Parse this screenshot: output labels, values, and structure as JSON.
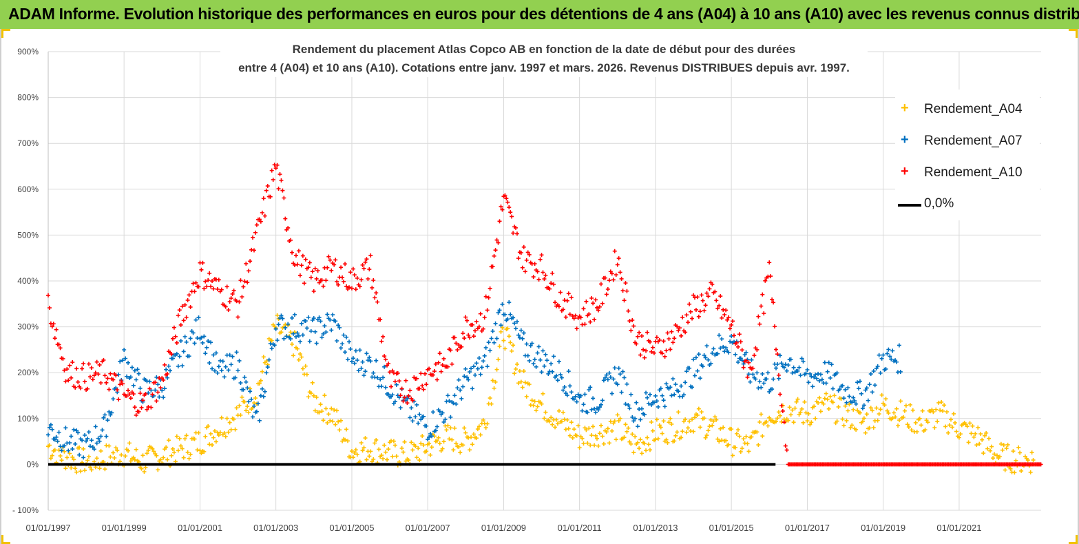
{
  "banner": {
    "title": "ADAM Informe. Evolution historique des performances en euros pour des détentions de 4 ans (A04) à 10 ans (A10) avec les revenus connus distribués"
  },
  "chart_data": {
    "type": "scatter",
    "title_line1": "Rendement du placement Atlas Copco AB en fonction de la date de début pour des durées",
    "title_line2": "entre 4 (A04) et 10 ans (A10).  Cotations entre janv. 1997 et mars. 2026.  Revenus DISTRIBUES depuis avr. 1997.",
    "xlabel": "",
    "ylabel": "",
    "xlim": [
      "1997-01-01",
      "2023-03-01"
    ],
    "ylim": [
      -100,
      900
    ],
    "y_ticks": [
      -100,
      0,
      100,
      200,
      300,
      400,
      500,
      600,
      700,
      800,
      900
    ],
    "y_tick_labels": [
      "- 100%",
      "0%",
      "100%",
      "200%",
      "300%",
      "400%",
      "500%",
      "600%",
      "700%",
      "800%",
      "900%"
    ],
    "x_tick_labels": [
      "01/01/1997",
      "01/01/1999",
      "01/01/2001",
      "01/01/2003",
      "01/01/2005",
      "01/01/2007",
      "01/01/2009",
      "01/01/2011",
      "01/01/2013",
      "01/01/2015",
      "01/01/2017",
      "01/01/2019",
      "01/01/2021"
    ],
    "x_tick_dates": [
      "1997-01-01",
      "1999-01-01",
      "2001-01-01",
      "2003-01-01",
      "2005-01-01",
      "2007-01-01",
      "2009-01-01",
      "2011-01-01",
      "2013-01-01",
      "2015-01-01",
      "2017-01-01",
      "2019-01-01",
      "2021-01-01"
    ],
    "grid": true,
    "legend_position": "top-right",
    "series": [
      {
        "name": "Rendement_A04",
        "color": "#ffc000",
        "marker": "plus",
        "x": [
          "1997-01-01",
          "1997-07-01",
          "1998-01-01",
          "1998-07-01",
          "1999-01-01",
          "1999-07-01",
          "2000-01-01",
          "2000-07-01",
          "2001-01-01",
          "2001-07-01",
          "2002-01-01",
          "2002-07-01",
          "2003-01-01",
          "2003-07-01",
          "2004-01-01",
          "2004-07-01",
          "2005-01-01",
          "2005-07-01",
          "2006-01-01",
          "2006-07-01",
          "2007-01-01",
          "2007-07-01",
          "2008-01-01",
          "2008-07-01",
          "2009-01-01",
          "2009-07-01",
          "2010-01-01",
          "2010-07-01",
          "2011-01-01",
          "2011-07-01",
          "2012-01-01",
          "2012-07-01",
          "2013-01-01",
          "2013-07-01",
          "2014-01-01",
          "2014-07-01",
          "2015-01-01",
          "2015-07-01",
          "2016-01-01",
          "2016-07-01",
          "2017-01-01",
          "2017-07-01",
          "2018-01-01",
          "2018-07-01",
          "2019-01-01",
          "2019-07-01",
          "2020-01-01",
          "2020-07-01",
          "2021-01-01",
          "2021-07-01",
          "2022-01-01",
          "2022-07-01"
        ],
        "y": [
          40,
          15,
          5,
          15,
          25,
          5,
          20,
          35,
          50,
          80,
          110,
          160,
          300,
          260,
          140,
          110,
          30,
          35,
          25,
          20,
          40,
          60,
          50,
          90,
          290,
          180,
          130,
          95,
          60,
          70,
          80,
          40,
          70,
          80,
          100,
          80,
          50,
          40,
          110,
          120,
          110,
          130,
          110,
          90,
          130,
          110,
          90,
          110,
          80,
          60,
          20,
          10
        ]
      },
      {
        "name": "Rendement_A07",
        "color": "#0070c0",
        "marker": "plus",
        "x": [
          "1997-01-01",
          "1997-07-01",
          "1998-01-01",
          "1998-07-01",
          "1999-01-01",
          "1999-07-01",
          "2000-01-01",
          "2000-07-01",
          "2001-01-01",
          "2001-07-01",
          "2002-01-01",
          "2002-07-01",
          "2003-01-01",
          "2003-07-01",
          "2004-01-01",
          "2004-07-01",
          "2005-01-01",
          "2005-07-01",
          "2006-01-01",
          "2006-07-01",
          "2007-01-01",
          "2007-07-01",
          "2008-01-01",
          "2008-07-01",
          "2009-01-01",
          "2009-07-01",
          "2010-01-01",
          "2010-07-01",
          "2011-01-01",
          "2011-07-01",
          "2012-01-01",
          "2012-07-01",
          "2013-01-01",
          "2013-07-01",
          "2014-01-01",
          "2014-07-01",
          "2015-01-01",
          "2015-07-01",
          "2016-01-01",
          "2016-07-01",
          "2017-01-01",
          "2017-07-01",
          "2018-01-01",
          "2018-07-01",
          "2019-01-01"
        ],
        "y": [
          80,
          50,
          40,
          80,
          230,
          160,
          170,
          240,
          300,
          200,
          220,
          90,
          300,
          300,
          290,
          310,
          230,
          220,
          170,
          120,
          80,
          120,
          180,
          220,
          350,
          260,
          230,
          200,
          140,
          140,
          200,
          110,
          150,
          160,
          200,
          250,
          270,
          200,
          180,
          230,
          190,
          200,
          160,
          150,
          230
        ]
      },
      {
        "name": "Rendement_A10",
        "color": "#ff0000",
        "marker": "plus",
        "x": [
          "1997-01-01",
          "1997-07-01",
          "1998-01-01",
          "1998-07-01",
          "1999-01-01",
          "1999-07-01",
          "2000-01-01",
          "2000-07-01",
          "2001-01-01",
          "2001-07-01",
          "2002-01-01",
          "2002-07-01",
          "2003-01-01",
          "2003-07-01",
          "2004-01-01",
          "2004-07-01",
          "2005-01-01",
          "2005-07-01",
          "2006-01-01",
          "2006-07-01",
          "2007-01-01",
          "2007-07-01",
          "2008-01-01",
          "2008-07-01",
          "2009-01-01",
          "2009-07-01",
          "2010-01-01",
          "2010-07-01",
          "2011-01-01",
          "2011-07-01",
          "2012-01-01",
          "2012-07-01",
          "2013-01-01",
          "2013-07-01",
          "2014-01-01",
          "2014-07-01",
          "2015-01-01",
          "2015-07-01",
          "2016-01-01",
          "2016-07-01",
          "2017-01-01",
          "2017-07-01",
          "2018-01-01",
          "2018-07-01",
          "2019-01-01",
          "2019-07-01",
          "2020-01-01",
          "2020-07-01",
          "2021-01-01",
          "2021-07-01",
          "2022-01-01",
          "2022-07-01",
          "2023-01-01"
        ],
        "y": [
          350,
          200,
          190,
          200,
          150,
          130,
          180,
          320,
          420,
          380,
          350,
          500,
          650,
          450,
          400,
          430,
          400,
          430,
          180,
          160,
          200,
          220,
          300,
          320,
          580,
          450,
          430,
          360,
          320,
          350,
          450,
          270,
          250,
          280,
          340,
          370,
          300,
          200,
          420,
          0,
          0,
          0,
          0,
          0,
          0,
          0,
          0,
          0,
          0,
          0,
          0,
          0,
          0
        ]
      },
      {
        "name": "0,0%",
        "color": "#000000",
        "marker": "line",
        "x": [
          "1997-01-01",
          "2016-03-01"
        ],
        "y": [
          0,
          0
        ]
      }
    ]
  }
}
